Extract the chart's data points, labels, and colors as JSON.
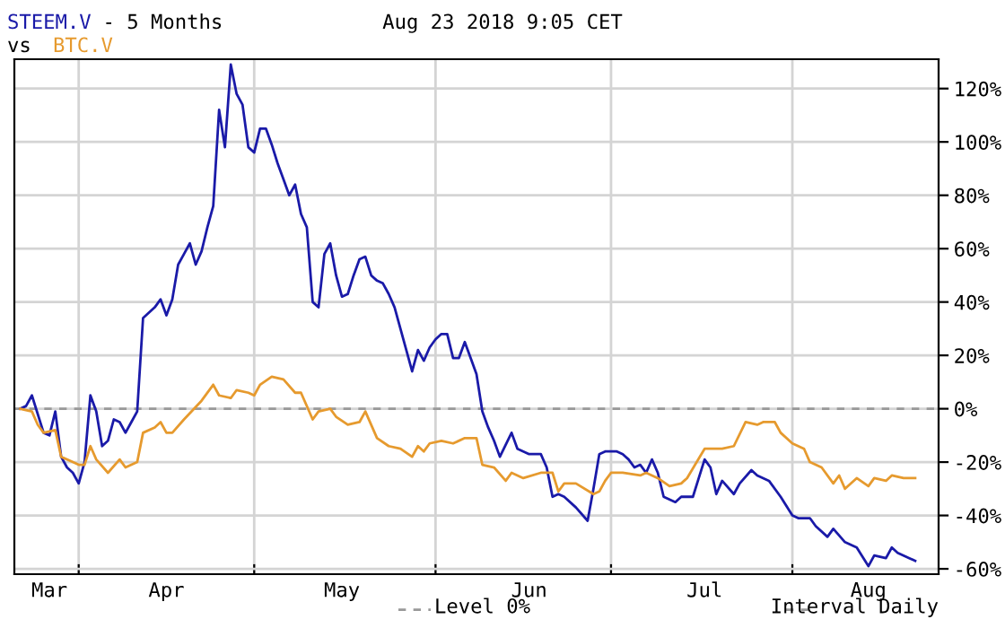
{
  "chart_data": {
    "type": "line",
    "title": "- 5 Months",
    "subtitle": "vs",
    "annotations": [
      "Aug 23 2018 9:05 CET",
      "Interval Daily"
    ],
    "grid": true,
    "line_style": "solid",
    "marker": "none",
    "xlim": [
      "2018-03-21",
      "2018-08-26"
    ],
    "xticks": [
      {
        "value": "2018-03-27",
        "label": "Mar"
      },
      {
        "value": "2018-04-01",
        "label": null
      },
      {
        "value": "2018-04-16",
        "label": "Apr"
      },
      {
        "value": "2018-05-01",
        "label": null
      },
      {
        "value": "2018-05-16",
        "label": "May"
      },
      {
        "value": "2018-06-01",
        "label": null
      },
      {
        "value": "2018-06-17",
        "label": "Jun"
      },
      {
        "value": "2018-07-01",
        "label": null
      },
      {
        "value": "2018-07-17",
        "label": "Jul"
      },
      {
        "value": "2018-08-01",
        "label": null
      },
      {
        "value": "2018-08-14",
        "label": "Aug"
      }
    ],
    "ylim": [
      -62,
      131
    ],
    "yticks": [
      {
        "value": -60,
        "label": "-60%"
      },
      {
        "value": -40,
        "label": "-40%"
      },
      {
        "value": -20,
        "label": "-20%"
      },
      {
        "value": 0,
        "label": "0%"
      },
      {
        "value": 20,
        "label": "20%"
      },
      {
        "value": 40,
        "label": "40%"
      },
      {
        "value": 60,
        "label": "60%"
      },
      {
        "value": 80,
        "label": "80%"
      },
      {
        "value": 100,
        "label": "100%"
      },
      {
        "value": 120,
        "label": "120%"
      }
    ],
    "ref_lines": [
      {
        "axis": "y",
        "value": 0,
        "label": "Level 0%",
        "color": "#999999",
        "line_style": "dashed"
      }
    ],
    "series": [
      {
        "name": "STEEM.V",
        "color": "#1a1aa8",
        "x": [
          "2018-03-22",
          "2018-03-23",
          "2018-03-24",
          "2018-03-26",
          "2018-03-27",
          "2018-03-28",
          "2018-03-29",
          "2018-03-30",
          "2018-03-31",
          "2018-04-01",
          "2018-04-02",
          "2018-04-03",
          "2018-04-04",
          "2018-04-05",
          "2018-04-06",
          "2018-04-07",
          "2018-04-08",
          "2018-04-09",
          "2018-04-10",
          "2018-04-11",
          "2018-04-12",
          "2018-04-13",
          "2018-04-14",
          "2018-04-15",
          "2018-04-16",
          "2018-04-17",
          "2018-04-18",
          "2018-04-19",
          "2018-04-20",
          "2018-04-21",
          "2018-04-22",
          "2018-04-23",
          "2018-04-24",
          "2018-04-25",
          "2018-04-26",
          "2018-04-27",
          "2018-04-28",
          "2018-04-29",
          "2018-04-30",
          "2018-05-01",
          "2018-05-02",
          "2018-05-03",
          "2018-05-04",
          "2018-05-05",
          "2018-05-06",
          "2018-05-07",
          "2018-05-08",
          "2018-05-09",
          "2018-05-10",
          "2018-05-11",
          "2018-05-12",
          "2018-05-13",
          "2018-05-14",
          "2018-05-15",
          "2018-05-16",
          "2018-05-17",
          "2018-05-18",
          "2018-05-19",
          "2018-05-20",
          "2018-05-21",
          "2018-05-22",
          "2018-05-23",
          "2018-05-24",
          "2018-05-25",
          "2018-05-26",
          "2018-05-27",
          "2018-05-28",
          "2018-05-29",
          "2018-05-30",
          "2018-05-31",
          "2018-06-01",
          "2018-06-02",
          "2018-06-03",
          "2018-06-04",
          "2018-06-05",
          "2018-06-06",
          "2018-06-07",
          "2018-06-08",
          "2018-06-09",
          "2018-06-10",
          "2018-06-11",
          "2018-06-12",
          "2018-06-14",
          "2018-06-15",
          "2018-06-17",
          "2018-06-19",
          "2018-06-20",
          "2018-06-21",
          "2018-06-22",
          "2018-06-23",
          "2018-06-25",
          "2018-06-27",
          "2018-06-28",
          "2018-06-29",
          "2018-06-30",
          "2018-07-02",
          "2018-07-03",
          "2018-07-04",
          "2018-07-05",
          "2018-07-06",
          "2018-07-07",
          "2018-07-08",
          "2018-07-09",
          "2018-07-10",
          "2018-07-12",
          "2018-07-13",
          "2018-07-15",
          "2018-07-16",
          "2018-07-17",
          "2018-07-18",
          "2018-07-19",
          "2018-07-20",
          "2018-07-22",
          "2018-07-23",
          "2018-07-25",
          "2018-07-26",
          "2018-07-28",
          "2018-07-30",
          "2018-08-01",
          "2018-08-02",
          "2018-08-04",
          "2018-08-05",
          "2018-08-07",
          "2018-08-08",
          "2018-08-10",
          "2018-08-12",
          "2018-08-14",
          "2018-08-15",
          "2018-08-17",
          "2018-08-18",
          "2018-08-19",
          "2018-08-21",
          "2018-08-22"
        ],
        "values": [
          0,
          1,
          5,
          -9,
          -10,
          -1,
          -18,
          -22,
          -24,
          -28,
          -20,
          5,
          -1,
          -14,
          -12,
          -4,
          -5,
          -9,
          -5,
          -1,
          34,
          36,
          38,
          41,
          35,
          41,
          54,
          58,
          62,
          54,
          59,
          68,
          76,
          112,
          98,
          129,
          118,
          114,
          98,
          96,
          105,
          105,
          99,
          92,
          86,
          80,
          84,
          73,
          68,
          40,
          38,
          58,
          62,
          50,
          42,
          43,
          50,
          56,
          57,
          50,
          48,
          47,
          43,
          38,
          30,
          22,
          14,
          22,
          18,
          23,
          26,
          28,
          28,
          19,
          19,
          25,
          19,
          13,
          -1,
          -7,
          -12,
          -18,
          -9,
          -15,
          -17,
          -17,
          -22,
          -33,
          -32,
          -33,
          -37,
          -42,
          -30,
          -17,
          -16,
          -16,
          -17,
          -19,
          -22,
          -21,
          -24,
          -19,
          -24,
          -33,
          -35,
          -33,
          -33,
          -26,
          -19,
          -22,
          -32,
          -27,
          -32,
          -28,
          -23,
          -25,
          -27,
          -33,
          -40,
          -41,
          -41,
          -44,
          -48,
          -45,
          -50,
          -52,
          -59,
          -55,
          -56,
          -52,
          -54,
          -56,
          -57
        ]
      },
      {
        "name": "BTC.V",
        "color": "#e69a2e",
        "x": [
          "2018-03-22",
          "2018-03-24",
          "2018-03-25",
          "2018-03-26",
          "2018-03-28",
          "2018-03-29",
          "2018-03-31",
          "2018-04-01",
          "2018-04-02",
          "2018-04-03",
          "2018-04-04",
          "2018-04-06",
          "2018-04-08",
          "2018-04-09",
          "2018-04-11",
          "2018-04-12",
          "2018-04-14",
          "2018-04-15",
          "2018-04-16",
          "2018-04-17",
          "2018-04-19",
          "2018-04-22",
          "2018-04-24",
          "2018-04-25",
          "2018-04-27",
          "2018-04-28",
          "2018-04-30",
          "2018-05-01",
          "2018-05-02",
          "2018-05-04",
          "2018-05-06",
          "2018-05-08",
          "2018-05-09",
          "2018-05-11",
          "2018-05-12",
          "2018-05-14",
          "2018-05-15",
          "2018-05-17",
          "2018-05-19",
          "2018-05-20",
          "2018-05-22",
          "2018-05-24",
          "2018-05-26",
          "2018-05-28",
          "2018-05-29",
          "2018-05-30",
          "2018-05-31",
          "2018-06-02",
          "2018-06-04",
          "2018-06-06",
          "2018-06-08",
          "2018-06-09",
          "2018-06-11",
          "2018-06-13",
          "2018-06-14",
          "2018-06-16",
          "2018-06-19",
          "2018-06-21",
          "2018-06-22",
          "2018-06-23",
          "2018-06-25",
          "2018-06-28",
          "2018-06-29",
          "2018-06-30",
          "2018-07-01",
          "2018-07-03",
          "2018-07-06",
          "2018-07-07",
          "2018-07-09",
          "2018-07-11",
          "2018-07-13",
          "2018-07-14",
          "2018-07-17",
          "2018-07-18",
          "2018-07-20",
          "2018-07-22",
          "2018-07-24",
          "2018-07-26",
          "2018-07-27",
          "2018-07-29",
          "2018-07-30",
          "2018-08-01",
          "2018-08-03",
          "2018-08-04",
          "2018-08-06",
          "2018-08-08",
          "2018-08-09",
          "2018-08-10",
          "2018-08-12",
          "2018-08-14",
          "2018-08-15",
          "2018-08-17",
          "2018-08-18",
          "2018-08-20",
          "2018-08-22"
        ],
        "values": [
          0,
          -1,
          -6,
          -9,
          -8,
          -18,
          -20,
          -21,
          -21,
          -14,
          -19,
          -24,
          -19,
          -22,
          -20,
          -9,
          -7,
          -5,
          -9,
          -9,
          -4,
          3,
          9,
          5,
          4,
          7,
          6,
          5,
          9,
          12,
          11,
          6,
          6,
          -4,
          -1,
          0,
          -3,
          -6,
          -5,
          -1,
          -11,
          -14,
          -15,
          -18,
          -14,
          -16,
          -13,
          -12,
          -13,
          -11,
          -11,
          -21,
          -22,
          -27,
          -24,
          -26,
          -24,
          -24,
          -31,
          -28,
          -28,
          -32,
          -31,
          -27,
          -24,
          -24,
          -25,
          -24,
          -26,
          -29,
          -28,
          -26,
          -15,
          -15,
          -15,
          -14,
          -5,
          -6,
          -5,
          -5,
          -9,
          -13,
          -15,
          -20,
          -22,
          -28,
          -25,
          -30,
          -26,
          -29,
          -26,
          -27,
          -25,
          -26,
          -26
        ]
      }
    ]
  }
}
